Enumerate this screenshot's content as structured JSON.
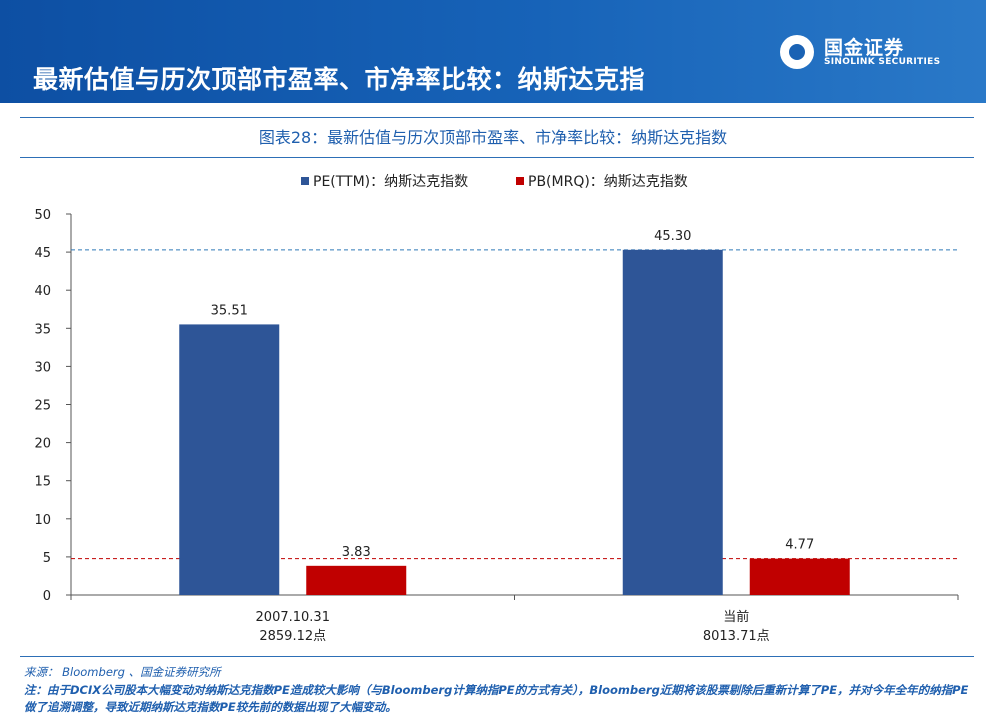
{
  "header": {
    "title": "最新估值与历次顶部市盈率、市净率比较：纳斯达克指",
    "logo_cn": "国金证券",
    "logo_en": "SINOLINK SECURITIES"
  },
  "figure_title": "图表28：最新估值与历次顶部市盈率、市净率比较：纳斯达克指数",
  "chart_data": {
    "type": "bar",
    "title": "图表28：最新估值与历次顶部市盈率、市净率比较：纳斯达克指数",
    "categories": [
      {
        "line1": "2007.10.31",
        "line2": "2859.12点"
      },
      {
        "line1": "当前",
        "line2": "8013.71点"
      }
    ],
    "series": [
      {
        "name": "PE(TTM)：纳斯达克指数",
        "color": "#2e5597",
        "values": [
          35.51,
          45.3
        ],
        "labels": [
          "35.51",
          "45.30"
        ]
      },
      {
        "name": "PB(MRQ)：纳斯达克指数",
        "color": "#c00000",
        "values": [
          3.83,
          4.77
        ],
        "labels": [
          "3.83",
          "4.77"
        ]
      }
    ],
    "ylim": [
      0,
      50
    ],
    "yticks": [
      "0",
      "5",
      "10",
      "15",
      "20",
      "25",
      "30",
      "35",
      "40",
      "45",
      "50"
    ],
    "reference_lines": [
      {
        "value": 45.3,
        "color": "#2e79b8",
        "style": "dashed"
      },
      {
        "value": 4.77,
        "color": "#c00000",
        "style": "dashed"
      }
    ],
    "legend_position": "top-center"
  },
  "footer": {
    "source": "来源： Bloomberg 、国金证券研究所",
    "note": "注：由于DCIX公司股本大幅变动对纳斯达克指数PE造成较大影响（与Bloomberg计算纳指PE的方式有关），Bloomberg近期将该股票剔除后重新计算了PE，并对今年全年的纳指PE做了追溯调整，导致近期纳斯达克指数PE较先前的数据出现了大幅变动。"
  }
}
